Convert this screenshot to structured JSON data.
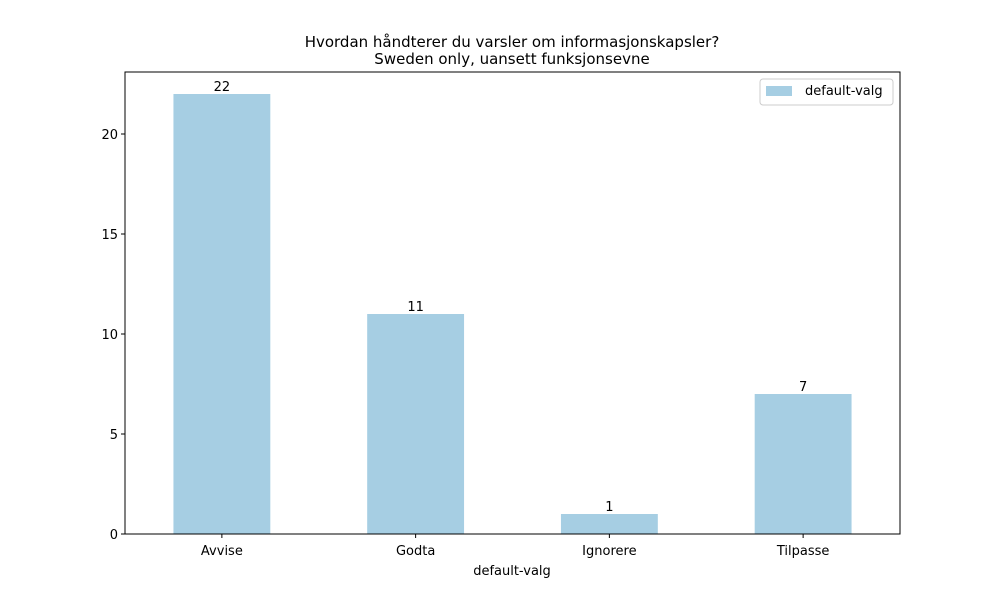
{
  "chart_data": {
    "type": "bar",
    "title": "Hvordan håndterer du varsler om informasjonskapsler?",
    "subtitle": "Sweden only, uansett funksjonsevne",
    "xlabel": "default-valg",
    "ylabel": "",
    "categories": [
      "Avvise",
      "Godta",
      "Ignorere",
      "Tilpasse"
    ],
    "series": [
      {
        "name": "default-valg",
        "values": [
          22,
          11,
          1,
          7
        ],
        "color": "#a6cee3"
      }
    ],
    "ylim": [
      0,
      23.1
    ],
    "yticks": [
      0,
      5,
      10,
      15,
      20
    ],
    "grid": false,
    "legend_position": "top-right"
  }
}
